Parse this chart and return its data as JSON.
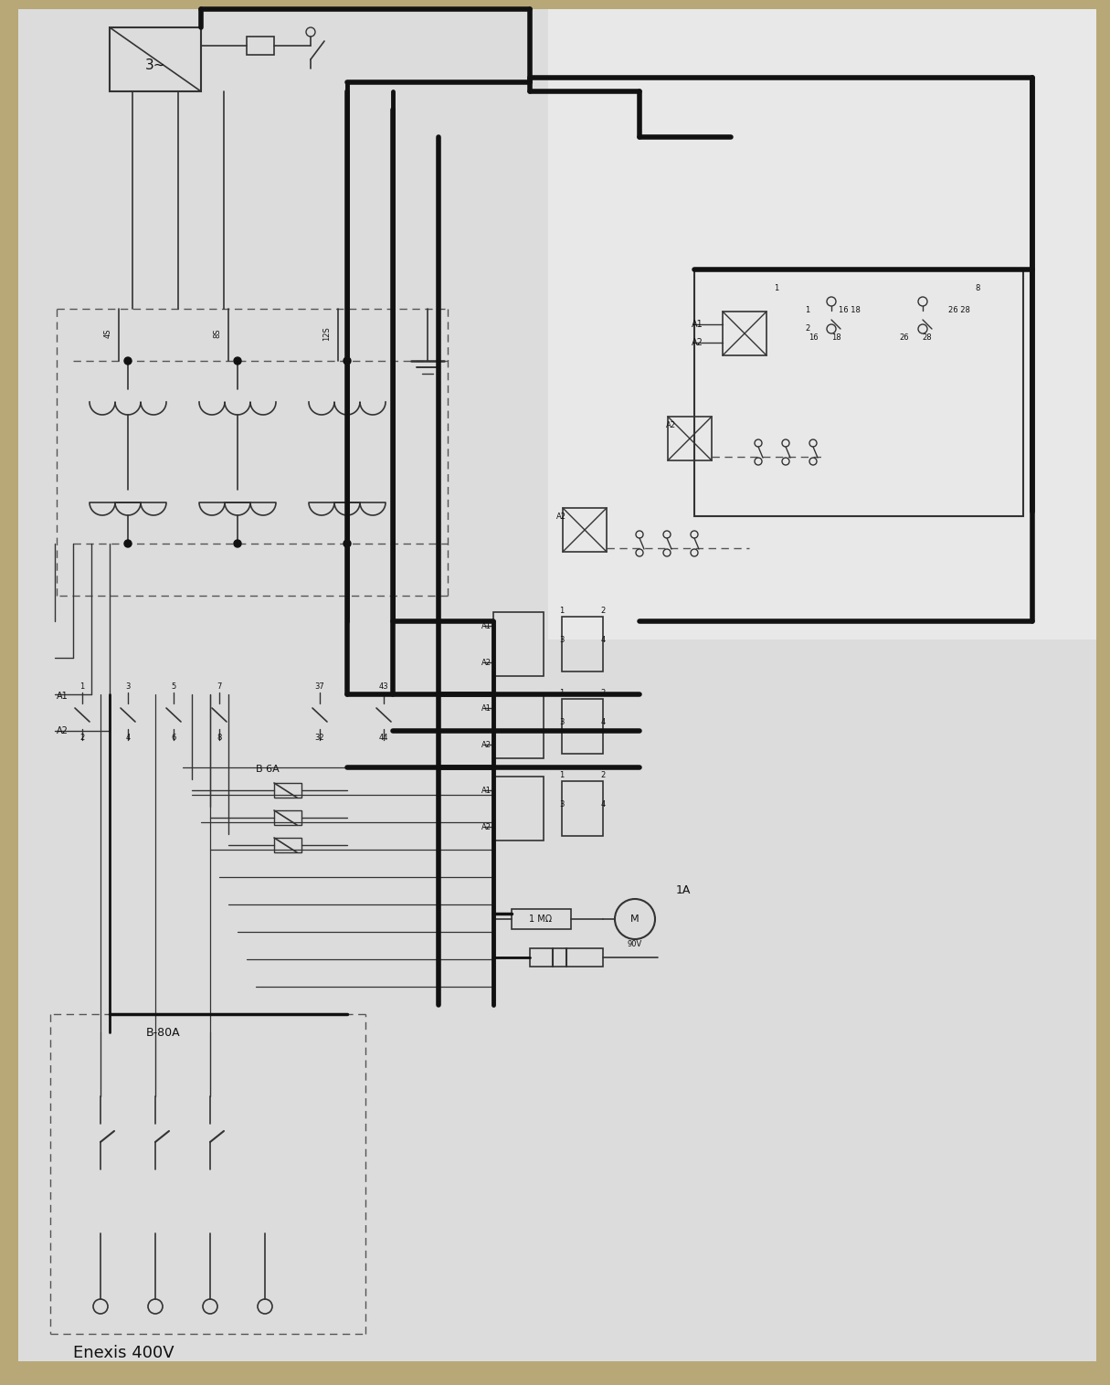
{
  "bg_wood": "#b8a878",
  "paper_bg": "#dcdcdc",
  "line_thick": "#111111",
  "line_thin": "#333333",
  "line_dash": "#555555",
  "text_enexis": "Enexis 400V",
  "text_B80A": "B-80A",
  "text_B6A": "B 6A",
  "text_1A": "1A",
  "text_1MO": "1 MΩ",
  "text_90V": "90V",
  "text_3ph": "3~",
  "text_A1": "A1",
  "text_A2": "A2",
  "lbl_16": "16",
  "lbl_18": "18",
  "lbl_26": "26",
  "lbl_28": "28"
}
